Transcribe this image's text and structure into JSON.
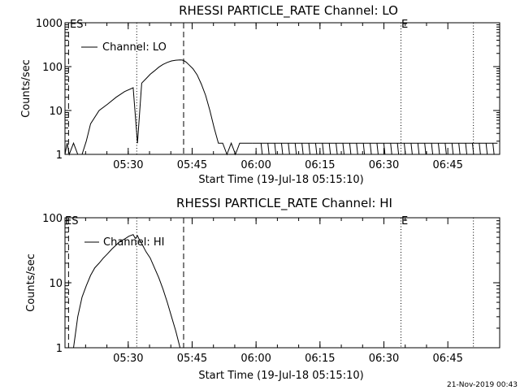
{
  "footer_date": "21-Nov-2019 00:43",
  "chart_data": [
    {
      "type": "line",
      "title": "RHESSI PARTICLE_RATE Channel: LO",
      "xlabel": "Start Time (19-Jul-18 05:15:10)",
      "ylabel": "Counts/sec",
      "y_scale": "log",
      "ylim": [
        1,
        1000
      ],
      "xlim_minutes_after_start": [
        0,
        102
      ],
      "x_ticks": [
        "05:30",
        "05:45",
        "06:00",
        "06:15",
        "06:30",
        "06:45"
      ],
      "y_ticks": [
        "1",
        "10",
        "100",
        "1000"
      ],
      "markers": [
        {
          "label": "ES",
          "time": "05:16",
          "style": "dashed"
        },
        {
          "time": "05:43",
          "style": "dashed"
        },
        {
          "time": "05:32",
          "style": "dotted"
        },
        {
          "label": "E",
          "time": "06:34",
          "style": "dotted"
        },
        {
          "time": "06:51",
          "style": "dotted"
        }
      ],
      "legend": {
        "position": "top-left",
        "entries": [
          "Channel: LO"
        ]
      },
      "series": [
        {
          "name": "Channel: LO",
          "x_minutes": [
            0,
            0.5,
            1,
            2,
            3,
            4,
            5,
            6,
            8,
            10,
            12,
            14,
            16,
            17,
            18,
            19,
            20,
            21,
            22,
            23,
            24,
            25,
            26,
            27,
            27.5,
            28,
            28.5,
            29,
            30,
            31,
            32,
            33,
            34,
            35,
            36,
            37,
            38,
            39,
            40,
            41,
            42,
            43,
            44
          ],
          "y": [
            1,
            1.8,
            1,
            1.8,
            1,
            1,
            2,
            5,
            10,
            14,
            20,
            27,
            33,
            1.8,
            42,
            53,
            67,
            80,
            97,
            112,
            125,
            135,
            140,
            142,
            141,
            135,
            125,
            112,
            90,
            65,
            40,
            22,
            10,
            4,
            1.8,
            1.8,
            1,
            1.8,
            1,
            1.8,
            1.8,
            1.8,
            1.8
          ]
        }
      ]
    },
    {
      "type": "line",
      "title": "RHESSI PARTICLE_RATE Channel: HI",
      "xlabel": "Start Time (19-Jul-18 05:15:10)",
      "ylabel": "Counts/sec",
      "y_scale": "log",
      "ylim": [
        1,
        100
      ],
      "xlim_minutes_after_start": [
        0,
        102
      ],
      "x_ticks": [
        "05:30",
        "05:45",
        "06:00",
        "06:15",
        "06:30",
        "06:45"
      ],
      "y_ticks": [
        "1",
        "10",
        "100"
      ],
      "markers": [
        {
          "label": "ES",
          "time": "05:16",
          "style": "dashed"
        },
        {
          "time": "05:43",
          "style": "dashed"
        },
        {
          "time": "05:32",
          "style": "dotted"
        },
        {
          "label": "E",
          "time": "06:34",
          "style": "dotted"
        },
        {
          "time": "06:51",
          "style": "dotted"
        }
      ],
      "legend": {
        "position": "top-left",
        "entries": [
          "Channel: HI"
        ]
      },
      "series": [
        {
          "name": "Channel: HI",
          "x_minutes": [
            2,
            3,
            4,
            5,
            6,
            7,
            8,
            9,
            10,
            11,
            12,
            13,
            14,
            15,
            16,
            16.5,
            17,
            17.5,
            18,
            19,
            20,
            21,
            22,
            23,
            24,
            25,
            26,
            27
          ],
          "y": [
            1,
            3,
            6,
            9,
            13,
            17,
            20,
            24,
            28,
            33,
            38,
            44,
            47,
            52,
            55,
            48,
            53,
            45,
            40,
            30,
            24,
            17,
            12,
            8,
            5,
            3,
            1.8,
            1
          ]
        }
      ]
    }
  ]
}
